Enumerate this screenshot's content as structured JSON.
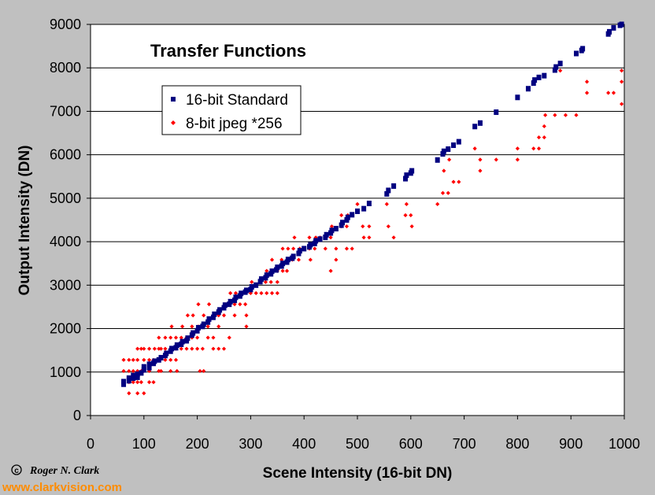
{
  "chart_data": {
    "type": "scatter",
    "title": "Transfer Functions",
    "xlabel": "Scene Intensity (16-bit DN)",
    "ylabel": "Output Intensity (DN)",
    "xlim": [
      0,
      1000
    ],
    "ylim": [
      0,
      9000
    ],
    "xticks": [
      "0",
      "100",
      "200",
      "300",
      "400",
      "500",
      "600",
      "700",
      "800",
      "900",
      "1000"
    ],
    "yticks": [
      "0",
      "1000",
      "2000",
      "3000",
      "4000",
      "5000",
      "6000",
      "7000",
      "8000",
      "9000"
    ],
    "grid": "horizontal",
    "legend_position": "upper-left",
    "series": [
      {
        "name": "16-bit Standard",
        "marker": "square",
        "color": "#000080",
        "points": [
          [
            62,
            720
          ],
          [
            62,
            780
          ],
          [
            72,
            800
          ],
          [
            72,
            860
          ],
          [
            80,
            860
          ],
          [
            80,
            920
          ],
          [
            88,
            880
          ],
          [
            88,
            950
          ],
          [
            95,
            980
          ],
          [
            100,
            1050
          ],
          [
            100,
            1120
          ],
          [
            110,
            1100
          ],
          [
            110,
            1180
          ],
          [
            118,
            1200
          ],
          [
            120,
            1250
          ],
          [
            128,
            1280
          ],
          [
            132,
            1330
          ],
          [
            140,
            1380
          ],
          [
            142,
            1430
          ],
          [
            150,
            1480
          ],
          [
            152,
            1540
          ],
          [
            160,
            1560
          ],
          [
            162,
            1620
          ],
          [
            170,
            1640
          ],
          [
            172,
            1700
          ],
          [
            180,
            1720
          ],
          [
            182,
            1780
          ],
          [
            190,
            1850
          ],
          [
            192,
            1900
          ],
          [
            200,
            1950
          ],
          [
            202,
            2020
          ],
          [
            210,
            2050
          ],
          [
            212,
            2100
          ],
          [
            220,
            2150
          ],
          [
            222,
            2220
          ],
          [
            230,
            2260
          ],
          [
            232,
            2330
          ],
          [
            240,
            2380
          ],
          [
            242,
            2430
          ],
          [
            250,
            2480
          ],
          [
            252,
            2540
          ],
          [
            260,
            2560
          ],
          [
            262,
            2620
          ],
          [
            270,
            2650
          ],
          [
            272,
            2720
          ],
          [
            280,
            2750
          ],
          [
            282,
            2810
          ],
          [
            290,
            2840
          ],
          [
            292,
            2880
          ],
          [
            300,
            2900
          ],
          [
            302,
            2960
          ],
          [
            310,
            3000
          ],
          [
            318,
            3080
          ],
          [
            320,
            3140
          ],
          [
            328,
            3170
          ],
          [
            330,
            3230
          ],
          [
            338,
            3260
          ],
          [
            340,
            3320
          ],
          [
            348,
            3350
          ],
          [
            350,
            3410
          ],
          [
            358,
            3440
          ],
          [
            360,
            3500
          ],
          [
            368,
            3530
          ],
          [
            370,
            3590
          ],
          [
            378,
            3620
          ],
          [
            380,
            3660
          ],
          [
            390,
            3730
          ],
          [
            392,
            3790
          ],
          [
            400,
            3840
          ],
          [
            410,
            3880
          ],
          [
            412,
            3930
          ],
          [
            420,
            3960
          ],
          [
            422,
            4020
          ],
          [
            430,
            4060
          ],
          [
            440,
            4100
          ],
          [
            442,
            4160
          ],
          [
            450,
            4200
          ],
          [
            452,
            4260
          ],
          [
            460,
            4300
          ],
          [
            470,
            4380
          ],
          [
            472,
            4440
          ],
          [
            480,
            4500
          ],
          [
            482,
            4560
          ],
          [
            490,
            4620
          ],
          [
            500,
            4700
          ],
          [
            512,
            4760
          ],
          [
            522,
            4880
          ],
          [
            555,
            5100
          ],
          [
            558,
            5180
          ],
          [
            568,
            5280
          ],
          [
            590,
            5450
          ],
          [
            592,
            5530
          ],
          [
            600,
            5580
          ],
          [
            602,
            5630
          ],
          [
            650,
            5880
          ],
          [
            660,
            6020
          ],
          [
            662,
            6080
          ],
          [
            670,
            6130
          ],
          [
            680,
            6220
          ],
          [
            690,
            6300
          ],
          [
            720,
            6650
          ],
          [
            730,
            6730
          ],
          [
            760,
            6980
          ],
          [
            800,
            7320
          ],
          [
            820,
            7520
          ],
          [
            830,
            7650
          ],
          [
            832,
            7720
          ],
          [
            840,
            7780
          ],
          [
            850,
            7820
          ],
          [
            870,
            7950
          ],
          [
            872,
            8020
          ],
          [
            880,
            8100
          ],
          [
            910,
            8330
          ],
          [
            920,
            8400
          ],
          [
            922,
            8440
          ],
          [
            970,
            8780
          ],
          [
            972,
            8830
          ],
          [
            980,
            8920
          ],
          [
            992,
            8980
          ],
          [
            995,
            9000
          ]
        ]
      },
      {
        "name": "8-bit jpeg *256",
        "marker": "diamond",
        "color": "#ff0000",
        "points": [
          [
            62,
            768
          ],
          [
            62,
            1024
          ],
          [
            62,
            1280
          ],
          [
            72,
            512
          ],
          [
            72,
            768
          ],
          [
            72,
            1024
          ],
          [
            72,
            1280
          ],
          [
            80,
            768
          ],
          [
            80,
            1024
          ],
          [
            80,
            1280
          ],
          [
            88,
            512
          ],
          [
            88,
            768
          ],
          [
            88,
            1024
          ],
          [
            88,
            1280
          ],
          [
            88,
            1536
          ],
          [
            95,
            768
          ],
          [
            95,
            1024
          ],
          [
            95,
            1536
          ],
          [
            100,
            512
          ],
          [
            100,
            1024
          ],
          [
            100,
            1280
          ],
          [
            100,
            1536
          ],
          [
            110,
            768
          ],
          [
            110,
            1024
          ],
          [
            110,
            1280
          ],
          [
            110,
            1536
          ],
          [
            118,
            768
          ],
          [
            118,
            1280
          ],
          [
            120,
            1536
          ],
          [
            128,
            1024
          ],
          [
            128,
            1280
          ],
          [
            128,
            1536
          ],
          [
            128,
            1792
          ],
          [
            132,
            1024
          ],
          [
            132,
            1536
          ],
          [
            140,
            1280
          ],
          [
            140,
            1536
          ],
          [
            140,
            1792
          ],
          [
            150,
            1024
          ],
          [
            150,
            1280
          ],
          [
            150,
            1536
          ],
          [
            150,
            1792
          ],
          [
            152,
            2048
          ],
          [
            160,
            1280
          ],
          [
            160,
            1536
          ],
          [
            160,
            1792
          ],
          [
            162,
            1024
          ],
          [
            170,
            1536
          ],
          [
            170,
            1792
          ],
          [
            172,
            2048
          ],
          [
            180,
            1536
          ],
          [
            180,
            1792
          ],
          [
            182,
            2304
          ],
          [
            190,
            1536
          ],
          [
            190,
            1792
          ],
          [
            190,
            2048
          ],
          [
            192,
            2304
          ],
          [
            200,
            1536
          ],
          [
            200,
            1792
          ],
          [
            202,
            2048
          ],
          [
            202,
            2560
          ],
          [
            205,
            1024
          ],
          [
            210,
            1536
          ],
          [
            212,
            1024
          ],
          [
            212,
            2048
          ],
          [
            212,
            2304
          ],
          [
            220,
            1792
          ],
          [
            220,
            2048
          ],
          [
            222,
            2560
          ],
          [
            230,
            1536
          ],
          [
            230,
            1792
          ],
          [
            230,
            2304
          ],
          [
            240,
            1536
          ],
          [
            240,
            2048
          ],
          [
            240,
            2304
          ],
          [
            250,
            1536
          ],
          [
            250,
            2304
          ],
          [
            252,
            2560
          ],
          [
            260,
            1792
          ],
          [
            260,
            2560
          ],
          [
            262,
            2816
          ],
          [
            270,
            2304
          ],
          [
            270,
            2560
          ],
          [
            272,
            2816
          ],
          [
            280,
            2560
          ],
          [
            282,
            2816
          ],
          [
            290,
            2560
          ],
          [
            292,
            2048
          ],
          [
            292,
            2304
          ],
          [
            300,
            2816
          ],
          [
            302,
            3072
          ],
          [
            310,
            2816
          ],
          [
            318,
            3072
          ],
          [
            320,
            2816
          ],
          [
            328,
            3072
          ],
          [
            330,
            2816
          ],
          [
            330,
            3328
          ],
          [
            338,
            3072
          ],
          [
            340,
            2816
          ],
          [
            340,
            3328
          ],
          [
            340,
            3584
          ],
          [
            350,
            3072
          ],
          [
            350,
            2816
          ],
          [
            350,
            3328
          ],
          [
            358,
            3584
          ],
          [
            360,
            3328
          ],
          [
            360,
            3840
          ],
          [
            368,
            3328
          ],
          [
            370,
            3584
          ],
          [
            370,
            3840
          ],
          [
            378,
            3584
          ],
          [
            380,
            3840
          ],
          [
            382,
            4096
          ],
          [
            390,
            3584
          ],
          [
            392,
            3840
          ],
          [
            400,
            3840
          ],
          [
            410,
            3840
          ],
          [
            410,
            4096
          ],
          [
            412,
            3584
          ],
          [
            420,
            3840
          ],
          [
            422,
            4096
          ],
          [
            430,
            4096
          ],
          [
            440,
            3840
          ],
          [
            440,
            4096
          ],
          [
            450,
            4096
          ],
          [
            450,
            3328
          ],
          [
            452,
            4352
          ],
          [
            460,
            3840
          ],
          [
            460,
            3584
          ],
          [
            470,
            4352
          ],
          [
            470,
            4608
          ],
          [
            480,
            3840
          ],
          [
            480,
            4352
          ],
          [
            482,
            4608
          ],
          [
            490,
            3840
          ],
          [
            490,
            4608
          ],
          [
            500,
            4864
          ],
          [
            510,
            4352
          ],
          [
            512,
            4096
          ],
          [
            522,
            4096
          ],
          [
            522,
            4352
          ],
          [
            555,
            4864
          ],
          [
            558,
            4352
          ],
          [
            568,
            4096
          ],
          [
            590,
            4608
          ],
          [
            592,
            4864
          ],
          [
            600,
            4608
          ],
          [
            602,
            4352
          ],
          [
            650,
            4864
          ],
          [
            660,
            5120
          ],
          [
            662,
            5632
          ],
          [
            670,
            5120
          ],
          [
            672,
            5888
          ],
          [
            680,
            5376
          ],
          [
            690,
            5376
          ],
          [
            720,
            6144
          ],
          [
            730,
            5632
          ],
          [
            730,
            5888
          ],
          [
            760,
            5888
          ],
          [
            800,
            5888
          ],
          [
            800,
            6144
          ],
          [
            830,
            6144
          ],
          [
            840,
            6144
          ],
          [
            840,
            6400
          ],
          [
            850,
            6656
          ],
          [
            850,
            6400
          ],
          [
            852,
            6912
          ],
          [
            870,
            6912
          ],
          [
            880,
            7936
          ],
          [
            890,
            6912
          ],
          [
            910,
            6912
          ],
          [
            930,
            7680
          ],
          [
            930,
            7424
          ],
          [
            970,
            7424
          ],
          [
            980,
            7424
          ],
          [
            995,
            7168
          ],
          [
            995,
            7680
          ],
          [
            995,
            7936
          ]
        ]
      }
    ]
  },
  "credit": {
    "copyright_symbol": "c",
    "author": "Roger N. Clark",
    "website": "www.clarkvision.com"
  }
}
